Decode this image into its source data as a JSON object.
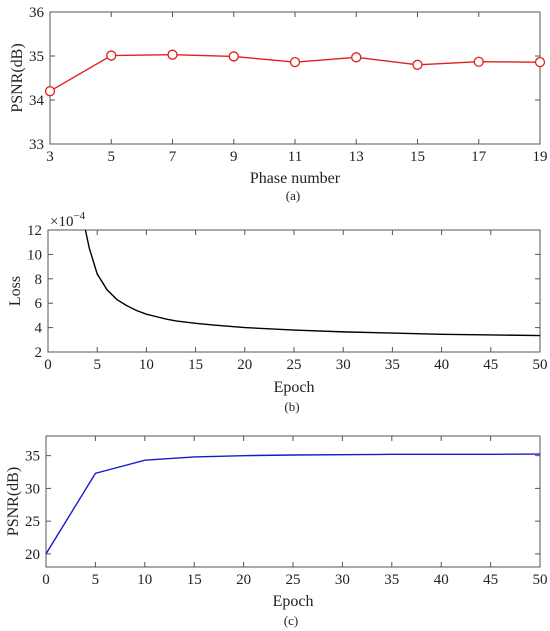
{
  "chart_data": [
    {
      "type": "line",
      "caption": "(a)",
      "xlabel": "Phase number",
      "ylabel": "PSNR(dB)",
      "xlim": [
        3,
        19
      ],
      "ylim": [
        33,
        36
      ],
      "x_ticks": [
        3,
        5,
        7,
        9,
        11,
        13,
        15,
        17,
        19
      ],
      "y_ticks": [
        33,
        34,
        35,
        36
      ],
      "grid": false,
      "series": [
        {
          "color": "#e02020",
          "marker": "circle",
          "x": [
            3,
            5,
            7,
            9,
            11,
            13,
            15,
            17,
            19
          ],
          "y": [
            34.2,
            35.01,
            35.03,
            34.99,
            34.86,
            34.97,
            34.8,
            34.87,
            34.86
          ]
        }
      ]
    },
    {
      "type": "line",
      "caption": "(b)",
      "xlabel": "Epoch",
      "ylabel": "Loss",
      "y_multiplier": "×10",
      "y_multiplier_exp": "−4",
      "xlim": [
        0,
        50
      ],
      "ylim": [
        2,
        12
      ],
      "x_ticks": [
        0,
        5,
        10,
        15,
        20,
        25,
        30,
        35,
        40,
        45,
        50
      ],
      "y_ticks": [
        2,
        4,
        6,
        8,
        10,
        12
      ],
      "grid": false,
      "series": [
        {
          "color": "#000000",
          "x": [
            3.8,
            4.2,
            5,
            6,
            7,
            8,
            9,
            10,
            11,
            12,
            13,
            15,
            17,
            20,
            25,
            30,
            35,
            40,
            45,
            50
          ],
          "y": [
            12,
            10.5,
            8.4,
            7.1,
            6.3,
            5.8,
            5.4,
            5.1,
            4.9,
            4.7,
            4.55,
            4.35,
            4.2,
            4.0,
            3.8,
            3.65,
            3.55,
            3.45,
            3.4,
            3.35
          ]
        }
      ]
    },
    {
      "type": "line",
      "caption": "(c)",
      "xlabel": "Epoch",
      "ylabel": "PSNR(dB)",
      "xlim": [
        0,
        50
      ],
      "ylim": [
        18,
        38
      ],
      "x_ticks": [
        0,
        5,
        10,
        15,
        20,
        25,
        30,
        35,
        40,
        45,
        50
      ],
      "y_ticks": [
        20,
        25,
        30,
        35
      ],
      "grid": false,
      "series": [
        {
          "color": "#1a1acc",
          "x": [
            0,
            5,
            10,
            15,
            20,
            25,
            30,
            35,
            40,
            45,
            50
          ],
          "y": [
            20.0,
            32.3,
            34.3,
            34.8,
            35.0,
            35.1,
            35.15,
            35.2,
            35.2,
            35.2,
            35.25
          ]
        }
      ]
    }
  ]
}
